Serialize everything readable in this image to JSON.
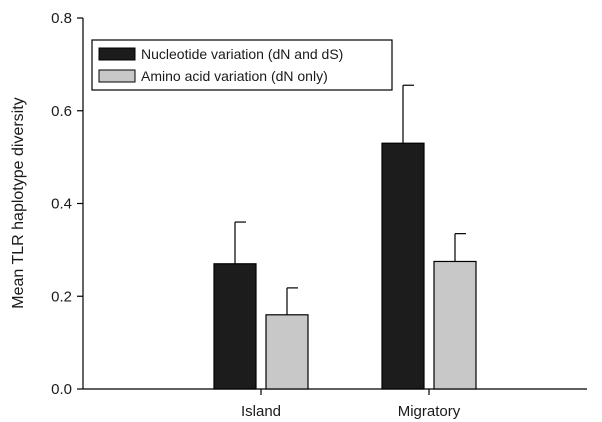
{
  "chart_data": {
    "type": "bar",
    "title": "",
    "xlabel": "",
    "ylabel": "Mean TLR haplotype diversity",
    "ylim": [
      0,
      0.8
    ],
    "yticks": [
      "0.0",
      "0.2",
      "0.4",
      "0.6",
      "0.8"
    ],
    "categories": [
      "Island",
      "Migratory"
    ],
    "series": [
      {
        "name": "Nucleotide variation (dN and dS)",
        "color": "#1c1c1c",
        "values": [
          0.27,
          0.53
        ],
        "errors": [
          0.09,
          0.125
        ]
      },
      {
        "name": "Amino acid variation (dN only)",
        "color": "#c8c8c8",
        "values": [
          0.16,
          0.275
        ],
        "errors": [
          0.058,
          0.06
        ]
      }
    ],
    "error_bars": "upper",
    "grid": false,
    "legend_position": "top-left"
  }
}
